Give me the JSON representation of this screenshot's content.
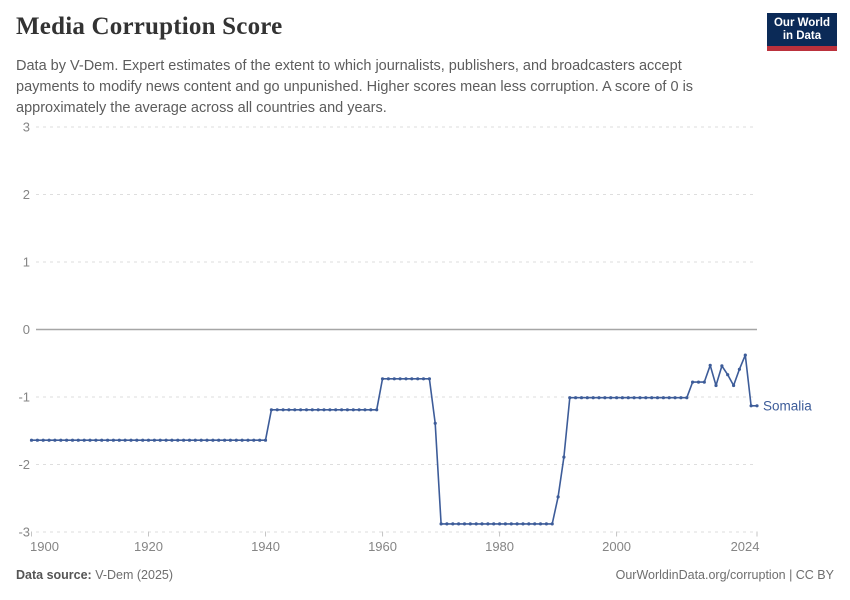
{
  "header": {
    "title": "Media Corruption Score",
    "subtitle_lines": {
      "0": "Data by V-Dem. Expert estimates of the extent to which journalists, publishers, and broadcasters accept",
      "1": "payments to modify news content and go unpunished. Higher scores mean less corruption. A score of 0 is",
      "2": "approximately the average across all countries and years."
    }
  },
  "logo": {
    "line1": "Our World",
    "line2": "in Data",
    "bg_color": "#0b2a57",
    "stripe_color": "#bb313c"
  },
  "footer": {
    "source_label": "Data source:",
    "source_text": " V-Dem (2025)",
    "attribution": "OurWorldinData.org/corruption | CC BY"
  },
  "colors": {
    "line": "#3d5c99",
    "grid": "#dedede",
    "zero_line": "#a6a6a6",
    "axis_text": "#858585",
    "title_text": "#333333",
    "subtitle_text": "#5c5c5c"
  },
  "chart_data": {
    "type": "line",
    "title": "Media Corruption Score",
    "xlabel": "",
    "ylabel": "",
    "x_domain": [
      1900,
      2024
    ],
    "y_domain": [
      -3,
      3
    ],
    "x_ticks": [
      1900,
      1920,
      1940,
      1960,
      1980,
      2000,
      2024
    ],
    "y_ticks": [
      3,
      2,
      1,
      0,
      -1,
      -2,
      -3
    ],
    "grid": "horizontal dashed, solid line at 0",
    "legend_position": "label at end of line",
    "series": [
      {
        "name": "Somalia",
        "points": [
          [
            1900,
            -1.64
          ],
          [
            1901,
            -1.64
          ],
          [
            1902,
            -1.64
          ],
          [
            1903,
            -1.64
          ],
          [
            1904,
            -1.64
          ],
          [
            1905,
            -1.64
          ],
          [
            1906,
            -1.64
          ],
          [
            1907,
            -1.64
          ],
          [
            1908,
            -1.64
          ],
          [
            1909,
            -1.64
          ],
          [
            1910,
            -1.64
          ],
          [
            1911,
            -1.64
          ],
          [
            1912,
            -1.64
          ],
          [
            1913,
            -1.64
          ],
          [
            1914,
            -1.64
          ],
          [
            1915,
            -1.64
          ],
          [
            1916,
            -1.64
          ],
          [
            1917,
            -1.64
          ],
          [
            1918,
            -1.64
          ],
          [
            1919,
            -1.64
          ],
          [
            1920,
            -1.64
          ],
          [
            1921,
            -1.64
          ],
          [
            1922,
            -1.64
          ],
          [
            1923,
            -1.64
          ],
          [
            1924,
            -1.64
          ],
          [
            1925,
            -1.64
          ],
          [
            1926,
            -1.64
          ],
          [
            1927,
            -1.64
          ],
          [
            1928,
            -1.64
          ],
          [
            1929,
            -1.64
          ],
          [
            1930,
            -1.64
          ],
          [
            1931,
            -1.64
          ],
          [
            1932,
            -1.64
          ],
          [
            1933,
            -1.64
          ],
          [
            1934,
            -1.64
          ],
          [
            1935,
            -1.64
          ],
          [
            1936,
            -1.64
          ],
          [
            1937,
            -1.64
          ],
          [
            1938,
            -1.64
          ],
          [
            1939,
            -1.64
          ],
          [
            1940,
            -1.64
          ],
          [
            1941,
            -1.19
          ],
          [
            1942,
            -1.19
          ],
          [
            1943,
            -1.19
          ],
          [
            1944,
            -1.19
          ],
          [
            1945,
            -1.19
          ],
          [
            1946,
            -1.19
          ],
          [
            1947,
            -1.19
          ],
          [
            1948,
            -1.19
          ],
          [
            1949,
            -1.19
          ],
          [
            1950,
            -1.19
          ],
          [
            1951,
            -1.19
          ],
          [
            1952,
            -1.19
          ],
          [
            1953,
            -1.19
          ],
          [
            1954,
            -1.19
          ],
          [
            1955,
            -1.19
          ],
          [
            1956,
            -1.19
          ],
          [
            1957,
            -1.19
          ],
          [
            1958,
            -1.19
          ],
          [
            1959,
            -1.19
          ],
          [
            1960,
            -0.73
          ],
          [
            1961,
            -0.73
          ],
          [
            1962,
            -0.73
          ],
          [
            1963,
            -0.73
          ],
          [
            1964,
            -0.73
          ],
          [
            1965,
            -0.73
          ],
          [
            1966,
            -0.73
          ],
          [
            1967,
            -0.73
          ],
          [
            1968,
            -0.73
          ],
          [
            1969,
            -1.39
          ],
          [
            1970,
            -2.88
          ],
          [
            1971,
            -2.88
          ],
          [
            1972,
            -2.88
          ],
          [
            1973,
            -2.88
          ],
          [
            1974,
            -2.88
          ],
          [
            1975,
            -2.88
          ],
          [
            1976,
            -2.88
          ],
          [
            1977,
            -2.88
          ],
          [
            1978,
            -2.88
          ],
          [
            1979,
            -2.88
          ],
          [
            1980,
            -2.88
          ],
          [
            1981,
            -2.88
          ],
          [
            1982,
            -2.88
          ],
          [
            1983,
            -2.88
          ],
          [
            1984,
            -2.88
          ],
          [
            1985,
            -2.88
          ],
          [
            1986,
            -2.88
          ],
          [
            1987,
            -2.88
          ],
          [
            1988,
            -2.88
          ],
          [
            1989,
            -2.88
          ],
          [
            1990,
            -2.48
          ],
          [
            1991,
            -1.89
          ],
          [
            1992,
            -1.01
          ],
          [
            1993,
            -1.01
          ],
          [
            1994,
            -1.01
          ],
          [
            1995,
            -1.01
          ],
          [
            1996,
            -1.01
          ],
          [
            1997,
            -1.01
          ],
          [
            1998,
            -1.01
          ],
          [
            1999,
            -1.01
          ],
          [
            2000,
            -1.01
          ],
          [
            2001,
            -1.01
          ],
          [
            2002,
            -1.01
          ],
          [
            2003,
            -1.01
          ],
          [
            2004,
            -1.01
          ],
          [
            2005,
            -1.01
          ],
          [
            2006,
            -1.01
          ],
          [
            2007,
            -1.01
          ],
          [
            2008,
            -1.01
          ],
          [
            2009,
            -1.01
          ],
          [
            2010,
            -1.01
          ],
          [
            2011,
            -1.01
          ],
          [
            2012,
            -1.01
          ],
          [
            2013,
            -0.78
          ],
          [
            2014,
            -0.78
          ],
          [
            2015,
            -0.78
          ],
          [
            2016,
            -0.53
          ],
          [
            2017,
            -0.83
          ],
          [
            2018,
            -0.54
          ],
          [
            2019,
            -0.67
          ],
          [
            2020,
            -0.83
          ],
          [
            2021,
            -0.59
          ],
          [
            2022,
            -0.38
          ],
          [
            2023,
            -1.13
          ],
          [
            2024,
            -1.13
          ]
        ]
      }
    ]
  }
}
